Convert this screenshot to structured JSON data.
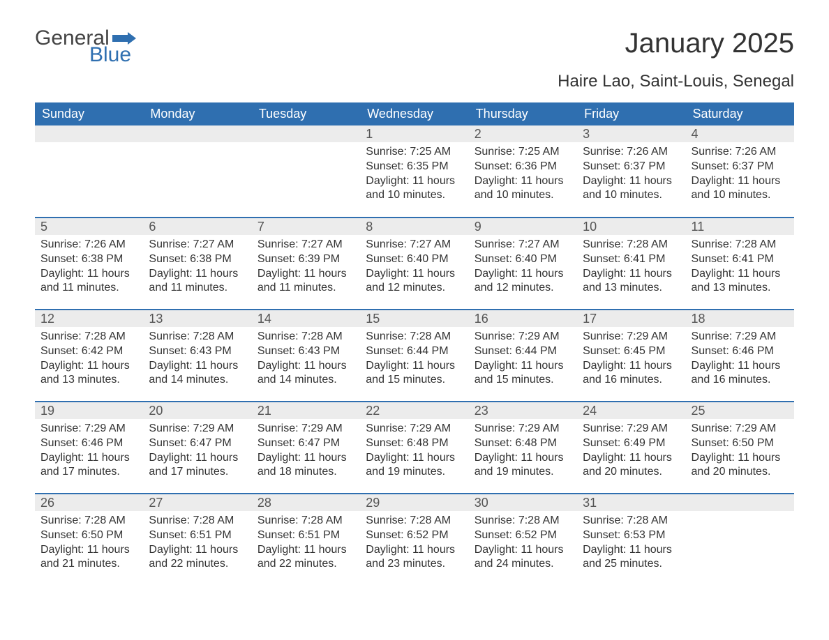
{
  "logo": {
    "word1": "General",
    "word2": "Blue",
    "flag_color": "#2f6fb0"
  },
  "title": "January 2025",
  "location": "Haire Lao, Saint-Louis, Senegal",
  "colors": {
    "header_bg": "#2f6fb0",
    "header_text": "#ffffff",
    "daynum_bg": "#ececec",
    "row_divider": "#2f6fb0",
    "body_text": "#333333",
    "page_bg": "#ffffff"
  },
  "typography": {
    "title_fontsize": 40,
    "location_fontsize": 24,
    "header_fontsize": 18,
    "daynum_fontsize": 18,
    "body_fontsize": 16
  },
  "day_names": [
    "Sunday",
    "Monday",
    "Tuesday",
    "Wednesday",
    "Thursday",
    "Friday",
    "Saturday"
  ],
  "labels": {
    "sunrise": "Sunrise:",
    "sunset": "Sunset:",
    "daylight": "Daylight:"
  },
  "weeks": [
    [
      {
        "day": "",
        "sunrise": "",
        "sunset": "",
        "daylight": ""
      },
      {
        "day": "",
        "sunrise": "",
        "sunset": "",
        "daylight": ""
      },
      {
        "day": "",
        "sunrise": "",
        "sunset": "",
        "daylight": ""
      },
      {
        "day": "1",
        "sunrise": "7:25 AM",
        "sunset": "6:35 PM",
        "daylight": "11 hours and 10 minutes."
      },
      {
        "day": "2",
        "sunrise": "7:25 AM",
        "sunset": "6:36 PM",
        "daylight": "11 hours and 10 minutes."
      },
      {
        "day": "3",
        "sunrise": "7:26 AM",
        "sunset": "6:37 PM",
        "daylight": "11 hours and 10 minutes."
      },
      {
        "day": "4",
        "sunrise": "7:26 AM",
        "sunset": "6:37 PM",
        "daylight": "11 hours and 10 minutes."
      }
    ],
    [
      {
        "day": "5",
        "sunrise": "7:26 AM",
        "sunset": "6:38 PM",
        "daylight": "11 hours and 11 minutes."
      },
      {
        "day": "6",
        "sunrise": "7:27 AM",
        "sunset": "6:38 PM",
        "daylight": "11 hours and 11 minutes."
      },
      {
        "day": "7",
        "sunrise": "7:27 AM",
        "sunset": "6:39 PM",
        "daylight": "11 hours and 11 minutes."
      },
      {
        "day": "8",
        "sunrise": "7:27 AM",
        "sunset": "6:40 PM",
        "daylight": "11 hours and 12 minutes."
      },
      {
        "day": "9",
        "sunrise": "7:27 AM",
        "sunset": "6:40 PM",
        "daylight": "11 hours and 12 minutes."
      },
      {
        "day": "10",
        "sunrise": "7:28 AM",
        "sunset": "6:41 PM",
        "daylight": "11 hours and 13 minutes."
      },
      {
        "day": "11",
        "sunrise": "7:28 AM",
        "sunset": "6:41 PM",
        "daylight": "11 hours and 13 minutes."
      }
    ],
    [
      {
        "day": "12",
        "sunrise": "7:28 AM",
        "sunset": "6:42 PM",
        "daylight": "11 hours and 13 minutes."
      },
      {
        "day": "13",
        "sunrise": "7:28 AM",
        "sunset": "6:43 PM",
        "daylight": "11 hours and 14 minutes."
      },
      {
        "day": "14",
        "sunrise": "7:28 AM",
        "sunset": "6:43 PM",
        "daylight": "11 hours and 14 minutes."
      },
      {
        "day": "15",
        "sunrise": "7:28 AM",
        "sunset": "6:44 PM",
        "daylight": "11 hours and 15 minutes."
      },
      {
        "day": "16",
        "sunrise": "7:29 AM",
        "sunset": "6:44 PM",
        "daylight": "11 hours and 15 minutes."
      },
      {
        "day": "17",
        "sunrise": "7:29 AM",
        "sunset": "6:45 PM",
        "daylight": "11 hours and 16 minutes."
      },
      {
        "day": "18",
        "sunrise": "7:29 AM",
        "sunset": "6:46 PM",
        "daylight": "11 hours and 16 minutes."
      }
    ],
    [
      {
        "day": "19",
        "sunrise": "7:29 AM",
        "sunset": "6:46 PM",
        "daylight": "11 hours and 17 minutes."
      },
      {
        "day": "20",
        "sunrise": "7:29 AM",
        "sunset": "6:47 PM",
        "daylight": "11 hours and 17 minutes."
      },
      {
        "day": "21",
        "sunrise": "7:29 AM",
        "sunset": "6:47 PM",
        "daylight": "11 hours and 18 minutes."
      },
      {
        "day": "22",
        "sunrise": "7:29 AM",
        "sunset": "6:48 PM",
        "daylight": "11 hours and 19 minutes."
      },
      {
        "day": "23",
        "sunrise": "7:29 AM",
        "sunset": "6:48 PM",
        "daylight": "11 hours and 19 minutes."
      },
      {
        "day": "24",
        "sunrise": "7:29 AM",
        "sunset": "6:49 PM",
        "daylight": "11 hours and 20 minutes."
      },
      {
        "day": "25",
        "sunrise": "7:29 AM",
        "sunset": "6:50 PM",
        "daylight": "11 hours and 20 minutes."
      }
    ],
    [
      {
        "day": "26",
        "sunrise": "7:28 AM",
        "sunset": "6:50 PM",
        "daylight": "11 hours and 21 minutes."
      },
      {
        "day": "27",
        "sunrise": "7:28 AM",
        "sunset": "6:51 PM",
        "daylight": "11 hours and 22 minutes."
      },
      {
        "day": "28",
        "sunrise": "7:28 AM",
        "sunset": "6:51 PM",
        "daylight": "11 hours and 22 minutes."
      },
      {
        "day": "29",
        "sunrise": "7:28 AM",
        "sunset": "6:52 PM",
        "daylight": "11 hours and 23 minutes."
      },
      {
        "day": "30",
        "sunrise": "7:28 AM",
        "sunset": "6:52 PM",
        "daylight": "11 hours and 24 minutes."
      },
      {
        "day": "31",
        "sunrise": "7:28 AM",
        "sunset": "6:53 PM",
        "daylight": "11 hours and 25 minutes."
      },
      {
        "day": "",
        "sunrise": "",
        "sunset": "",
        "daylight": ""
      }
    ]
  ]
}
